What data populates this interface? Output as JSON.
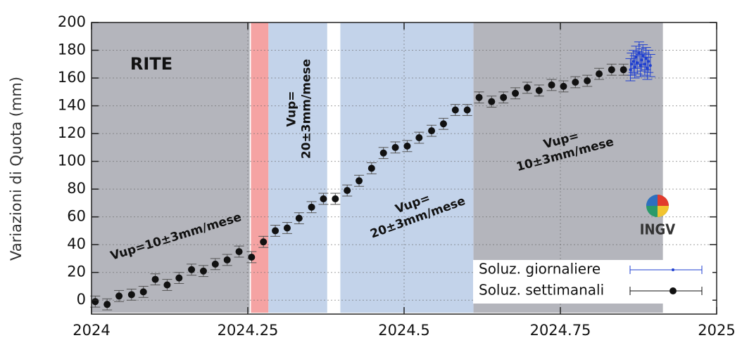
{
  "chart_data": {
    "type": "scatter",
    "ylabel": "Variazioni di Quota (mm)",
    "xlim": [
      2024,
      2025
    ],
    "xticks": [
      2024,
      2024.25,
      2024.5,
      2024.75,
      2025
    ],
    "ylim": [
      -10,
      200
    ],
    "yticks": [
      0,
      20,
      40,
      60,
      80,
      100,
      120,
      140,
      160,
      180,
      200
    ],
    "grid": true,
    "legend": "lower right",
    "regions": [
      {
        "x": [
          2024,
          2024.253
        ],
        "color": "#b4b5bc"
      },
      {
        "x": [
          2024.255,
          2024.283
        ],
        "color": "#f5a3a3"
      },
      {
        "x": [
          2024.283,
          2024.377
        ],
        "color": "#c3d3ea"
      },
      {
        "x": [
          2024.398,
          2024.611
        ],
        "color": "#c3d3ea"
      },
      {
        "x": [
          2024.611,
          2024.914
        ],
        "color": "#b4b5bc"
      }
    ],
    "annotations": [
      {
        "text": [
          "RITE"
        ]
      },
      {
        "text": [
          "Vup=10±3mm/mese"
        ]
      },
      {
        "text": [
          "Vup=",
          "20±3mm/mese"
        ]
      },
      {
        "text": [
          "Vup=",
          "20±3mm/mese"
        ]
      },
      {
        "text": [
          "Vup=",
          "10±3mm/mese"
        ]
      },
      {
        "text": [
          "INGV"
        ]
      }
    ],
    "series": [
      {
        "name": "Soluz. giornaliere",
        "color": "#1f3fd0",
        "x": [
          2024.862,
          2024.864,
          2024.867,
          2024.869,
          2024.871,
          2024.873,
          2024.876,
          2024.878,
          2024.88,
          2024.882,
          2024.885,
          2024.887,
          2024.889,
          2024.891,
          2024.894
        ],
        "values": [
          166,
          170,
          172,
          168,
          175,
          171,
          178,
          169,
          173,
          176,
          170,
          174,
          167,
          172,
          169
        ],
        "errors": [
          8,
          8,
          8,
          8,
          8,
          8,
          8,
          8,
          8,
          8,
          8,
          8,
          8,
          8,
          8
        ]
      },
      {
        "name": "Soluz. settimanali",
        "color": "#111111",
        "x": [
          2024.006,
          2024.025,
          2024.044,
          2024.064,
          2024.083,
          2024.102,
          2024.121,
          2024.14,
          2024.16,
          2024.179,
          2024.198,
          2024.217,
          2024.236,
          2024.256,
          2024.275,
          2024.294,
          2024.313,
          2024.332,
          2024.352,
          2024.371,
          2024.39,
          2024.409,
          2024.428,
          2024.448,
          2024.467,
          2024.486,
          2024.505,
          2024.524,
          2024.544,
          2024.563,
          2024.582,
          2024.601,
          2024.62,
          2024.64,
          2024.659,
          2024.678,
          2024.697,
          2024.716,
          2024.736,
          2024.755,
          2024.774,
          2024.793,
          2024.812,
          2024.832,
          2024.851
        ],
        "values": [
          -1,
          -3,
          3,
          4,
          6,
          15,
          11,
          16,
          22,
          21,
          26,
          29,
          35,
          31,
          42,
          50,
          52,
          59,
          67,
          73,
          73,
          79,
          86,
          95,
          106,
          110,
          111,
          117,
          122,
          127,
          137,
          137,
          146,
          143,
          146,
          149,
          153,
          151,
          155,
          154,
          157,
          158,
          163,
          166,
          166
        ],
        "errors": [
          4,
          4,
          4,
          4,
          4,
          4,
          4,
          4,
          4,
          4,
          4,
          4,
          4,
          4,
          4,
          4,
          4,
          4,
          4,
          4,
          4,
          4,
          4,
          4,
          4,
          4,
          4,
          4,
          4,
          4,
          4,
          4,
          4,
          4,
          4,
          4,
          4,
          4,
          4,
          4,
          4,
          4,
          4,
          4,
          4
        ]
      }
    ]
  }
}
